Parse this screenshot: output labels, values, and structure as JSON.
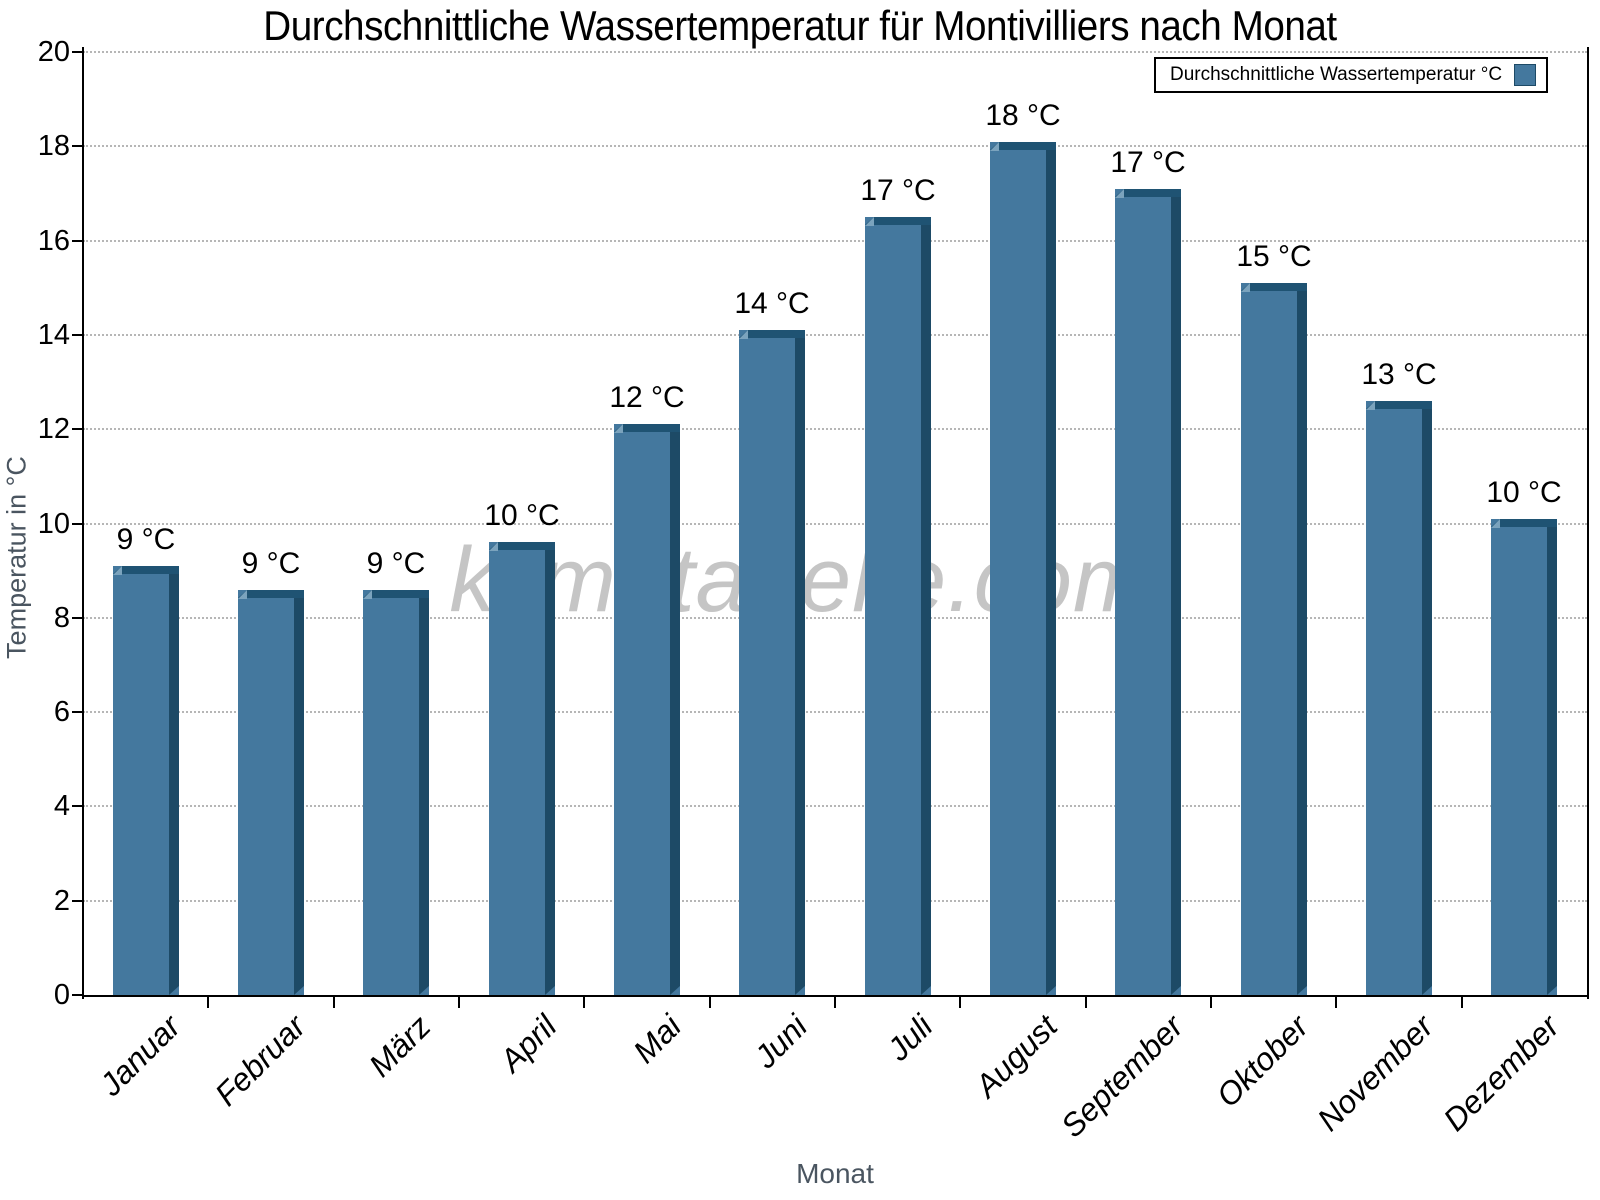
{
  "chart_data": {
    "type": "bar",
    "title": "Durchschnittliche Wassertemperatur für Montivilliers nach Monat",
    "xlabel": "Monat",
    "ylabel": "Temperatur in °C",
    "watermark": "klimatabelle.com",
    "legend": {
      "label": "Durchschnittliche Wassertemperatur °C",
      "position": "top-right"
    },
    "categories": [
      "Januar",
      "Februar",
      "März",
      "April",
      "Mai",
      "Juni",
      "Juli",
      "August",
      "September",
      "Oktober",
      "November",
      "Dezember"
    ],
    "values": [
      9.1,
      8.6,
      8.6,
      9.6,
      12.1,
      14.1,
      16.5,
      18.1,
      17.1,
      15.1,
      12.6,
      10.1
    ],
    "bar_labels": [
      "9 °C",
      "9 °C",
      "9 °C",
      "10 °C",
      "12 °C",
      "14 °C",
      "17 °C",
      "18 °C",
      "17 °C",
      "15 °C",
      "13 °C",
      "10 °C"
    ],
    "ylim": [
      0,
      20
    ],
    "ytick_step": 2,
    "ytick_labels": [
      "0",
      "2",
      "4",
      "6",
      "8",
      "10",
      "12",
      "14",
      "16",
      "18",
      "20"
    ],
    "grid": "horizontal-dotted",
    "colors": {
      "bar_fill": "#44789e",
      "bar_side": "#1d4a66",
      "bar_top": "#1f5373",
      "bar_bevel": "#7ba3bd",
      "gridline": "#b6b6b6",
      "axis": "#000000",
      "axis_title": "#4a5560",
      "watermark": "#c5c5c5"
    }
  }
}
